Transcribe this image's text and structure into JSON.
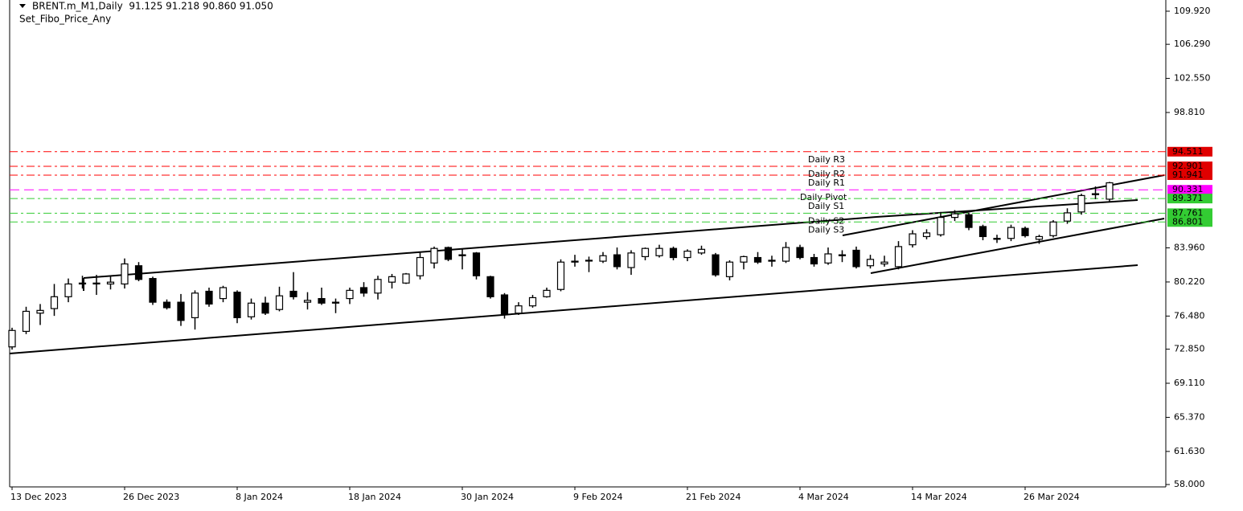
{
  "chart_data": {
    "type": "candlestick",
    "title": "BRENT.m_M1,Daily  91.125 91.218 90.860 91.050",
    "subtitle": "Set_Fibo_Price_Any",
    "categories": [
      "13 Dec 2023",
      null,
      null,
      null,
      null,
      null,
      null,
      null,
      "26 Dec 2023",
      null,
      null,
      null,
      null,
      null,
      null,
      null,
      "8 Jan 2024",
      null,
      null,
      null,
      null,
      null,
      null,
      null,
      "18 Jan 2024",
      null,
      null,
      null,
      null,
      null,
      null,
      null,
      "30 Jan 2024",
      null,
      null,
      null,
      null,
      null,
      null,
      null,
      "9 Feb 2024",
      null,
      null,
      null,
      null,
      null,
      null,
      null,
      "21 Feb 2024",
      null,
      null,
      null,
      null,
      null,
      null,
      null,
      "4 Mar 2024",
      null,
      null,
      null,
      null,
      null,
      null,
      null,
      "14 Mar 2024",
      null,
      null,
      null,
      null,
      null,
      null,
      null,
      "26 Mar 2024",
      null,
      null,
      null,
      null,
      null,
      null
    ],
    "open": [
      73.1,
      74.8,
      76.8,
      77.3,
      78.6,
      80.0,
      80.1,
      80.0,
      80.0,
      82.0,
      80.6,
      78.0,
      78.0,
      76.3,
      79.2,
      78.4,
      79.1,
      76.4,
      77.9,
      77.2,
      79.2,
      78.0,
      78.4,
      77.9,
      78.4,
      79.6,
      79.0,
      80.2,
      80.1,
      80.9,
      82.3,
      84.0,
      83.2,
      83.4,
      80.8,
      78.8,
      76.8,
      77.6,
      78.6,
      79.4,
      82.4,
      82.6,
      82.5,
      83.2,
      81.8,
      83.0,
      83.1,
      83.9,
      82.9,
      83.4,
      83.2,
      80.8,
      82.4,
      82.9,
      82.5,
      82.5,
      84.0,
      82.9,
      82.3,
      83.2,
      83.7,
      82.0,
      82.2,
      81.9,
      84.3,
      85.2,
      85.4,
      87.3,
      87.6,
      86.3,
      84.9,
      85.0,
      86.1,
      84.9,
      85.3,
      86.9,
      87.9,
      89.8,
      89.3
    ],
    "high": [
      75.2,
      77.5,
      77.8,
      80.0,
      80.6,
      80.9,
      81.0,
      80.9,
      82.8,
      82.4,
      80.8,
      78.3,
      78.9,
      79.3,
      79.6,
      79.8,
      79.3,
      78.4,
      78.6,
      79.7,
      81.3,
      79.1,
      79.6,
      78.4,
      79.6,
      80.2,
      80.9,
      81.1,
      81.2,
      83.5,
      84.1,
      84.1,
      83.8,
      83.5,
      80.9,
      79.0,
      78.0,
      78.8,
      79.6,
      82.7,
      83.2,
      83.0,
      83.5,
      84.0,
      83.7,
      84.0,
      84.3,
      84.1,
      83.8,
      84.2,
      83.4,
      82.6,
      83.1,
      83.5,
      83.1,
      84.6,
      84.3,
      83.3,
      84.0,
      83.7,
      84.1,
      83.2,
      83.1,
      84.7,
      85.9,
      86.0,
      87.9,
      88.1,
      87.8,
      86.5,
      85.4,
      86.5,
      86.3,
      85.4,
      87.0,
      88.3,
      89.9,
      90.7,
      91.2
    ],
    "low": [
      72.8,
      74.5,
      75.5,
      76.5,
      78.0,
      79.5,
      78.8,
      79.4,
      79.5,
      80.3,
      77.7,
      77.2,
      75.4,
      75.0,
      77.5,
      78.0,
      75.7,
      76.1,
      76.6,
      77.0,
      78.3,
      77.2,
      77.7,
      76.8,
      77.8,
      78.6,
      78.3,
      79.5,
      80.0,
      80.5,
      81.7,
      82.5,
      81.6,
      80.5,
      78.4,
      76.2,
      76.6,
      77.4,
      78.5,
      79.2,
      81.9,
      81.3,
      82.3,
      81.6,
      81.0,
      82.6,
      82.9,
      82.6,
      82.5,
      83.2,
      80.8,
      80.4,
      81.6,
      82.2,
      81.9,
      82.3,
      82.7,
      81.9,
      82.1,
      82.4,
      81.7,
      81.7,
      81.9,
      81.6,
      84.0,
      84.9,
      85.2,
      86.9,
      85.9,
      84.8,
      84.5,
      84.7,
      85.1,
      84.4,
      85.1,
      86.6,
      87.6,
      89.3,
      89.0
    ],
    "close": [
      74.9,
      77.0,
      77.1,
      78.6,
      80.0,
      80.1,
      80.0,
      80.2,
      82.2,
      80.5,
      78.0,
      77.4,
      76.0,
      79.0,
      77.8,
      79.6,
      76.3,
      77.9,
      76.8,
      78.7,
      78.6,
      78.2,
      77.9,
      78.0,
      79.3,
      79.0,
      80.5,
      80.8,
      81.1,
      82.9,
      83.9,
      82.7,
      83.1,
      80.9,
      78.6,
      76.7,
      77.6,
      78.5,
      79.3,
      82.4,
      82.5,
      82.6,
      83.1,
      81.9,
      83.4,
      83.9,
      83.9,
      82.9,
      83.6,
      83.8,
      81.0,
      82.4,
      83.0,
      82.4,
      82.6,
      84.0,
      82.9,
      82.2,
      83.3,
      83.1,
      81.9,
      82.7,
      82.4,
      84.1,
      85.5,
      85.6,
      87.3,
      87.7,
      86.2,
      85.2,
      85.0,
      86.2,
      85.3,
      85.2,
      86.8,
      87.8,
      89.7,
      89.9,
      91.1
    ],
    "ylim": [
      57.74,
      111.15
    ],
    "yticks": [
      {
        "value": 109.92,
        "label": "109.920"
      },
      {
        "value": 106.29,
        "label": "106.290"
      },
      {
        "value": 102.55,
        "label": "102.550"
      },
      {
        "value": 98.81,
        "label": "98.810"
      },
      {
        "value": 83.96,
        "label": "83.960"
      },
      {
        "value": 80.22,
        "label": "80.220"
      },
      {
        "value": 76.48,
        "label": "76.480"
      },
      {
        "value": 72.85,
        "label": "72.850"
      },
      {
        "value": 69.11,
        "label": "69.110"
      },
      {
        "value": 65.37,
        "label": "65.370"
      },
      {
        "value": 61.63,
        "label": "61.630"
      },
      {
        "value": 58,
        "label": "58.000"
      }
    ],
    "levels": [
      {
        "name": "Daily R3",
        "value": 94.511,
        "color": "#ff0000",
        "box": "#e00000"
      },
      {
        "name": "Daily R2",
        "value": 92.901,
        "color": "#ff0000",
        "box": "#e00000"
      },
      {
        "name": "Daily R1",
        "value": 91.941,
        "color": "#ff0000",
        "box": "#e00000"
      },
      {
        "name": "Daily Pivot",
        "value": 90.331,
        "color": "#ff00ff",
        "box": "#ff00ff"
      },
      {
        "name": "Daily S1",
        "value": 89.371,
        "color": "#33cc33",
        "box": "#33cc33"
      },
      {
        "name": "Daily S2",
        "value": 87.761,
        "color": "#33cc33",
        "box": "#33cc33"
      },
      {
        "name": "Daily S3",
        "value": 86.801,
        "color": "#33cc33",
        "box": "#33cc33"
      }
    ]
  }
}
